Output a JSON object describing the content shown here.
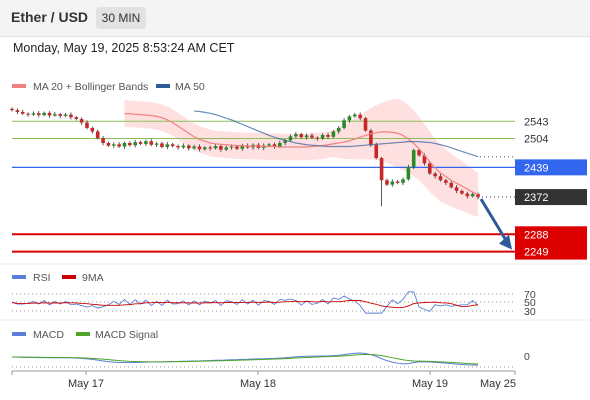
{
  "header": {
    "pair": "Ether / USD",
    "timeframe": "30 MIN"
  },
  "timestamp": "Monday, May 19, 2025 8:53:24 AM CET",
  "colors": {
    "ma20": "#f08080",
    "ma50": "#2e5c9a",
    "bands": "#ffd6d6",
    "up": "#2a8a2a",
    "down": "#c62828",
    "resistance": "#8cbf5a",
    "current": "#3366ee",
    "support": "#dd0000",
    "rsi": "#5b7fd6",
    "ma9": "#cc0000",
    "macd": "#5b7fd6",
    "signal": "#4ea52a"
  },
  "legend_main": {
    "ma20": "MA 20 + Bollinger Bands",
    "ma50": "MA 50"
  },
  "legend_rsi": {
    "rsi": "RSI",
    "ma9": "9MA"
  },
  "legend_macd": {
    "macd": "MACD",
    "signal": "MACD Signal"
  },
  "chart_data": [
    {
      "type": "candlestick",
      "x_labels": [
        "May 17",
        "May 18",
        "May 19",
        "May 25"
      ],
      "ylim": [
        2230,
        2600
      ],
      "levels": [
        {
          "value": 2543,
          "label": "2543",
          "kind": "resistance"
        },
        {
          "value": 2504,
          "label": "2504",
          "kind": "resistance"
        },
        {
          "value": 2439,
          "label": "2439",
          "kind": "current"
        },
        {
          "value": 2372,
          "label": "2372",
          "kind": "last"
        },
        {
          "value": 2288,
          "label": "2288",
          "kind": "support"
        },
        {
          "value": 2249,
          "label": "2249",
          "kind": "support"
        }
      ],
      "close": [
        2568,
        2564,
        2560,
        2558,
        2561,
        2557,
        2562,
        2556,
        2559,
        2555,
        2558,
        2552,
        2548,
        2540,
        2528,
        2520,
        2505,
        2494,
        2488,
        2491,
        2486,
        2494,
        2489,
        2496,
        2492,
        2498,
        2490,
        2493,
        2485,
        2491,
        2487,
        2484,
        2488,
        2482,
        2486,
        2480,
        2484,
        2482,
        2487,
        2479,
        2484,
        2486,
        2481,
        2488,
        2484,
        2490,
        2483,
        2488,
        2491,
        2486,
        2494,
        2500,
        2509,
        2514,
        2507,
        2511,
        2506,
        2504,
        2512,
        2508,
        2520,
        2528,
        2545,
        2554,
        2558,
        2550,
        2522,
        2490,
        2460,
        2410,
        2400,
        2407,
        2404,
        2412,
        2440,
        2478,
        2466,
        2448,
        2425,
        2419,
        2410,
        2404,
        2394,
        2386,
        2380,
        2374,
        2379,
        2372
      ],
      "ma20": [
        2560,
        2560,
        2559,
        2558,
        2557,
        2556,
        2554,
        2551,
        2546,
        2540,
        2532,
        2524,
        2516,
        2508,
        2502,
        2498,
        2494,
        2492,
        2491,
        2490,
        2489,
        2488,
        2488,
        2487,
        2487,
        2487,
        2486,
        2486,
        2486,
        2485,
        2485,
        2485,
        2485,
        2485,
        2485,
        2486,
        2487,
        2488,
        2490,
        2492,
        2494,
        2496,
        2499,
        2503,
        2507,
        2511,
        2515,
        2517,
        2519,
        2519,
        2518,
        2516,
        2511,
        2503,
        2493,
        2481,
        2467,
        2452,
        2438,
        2426,
        2418,
        2410,
        2403,
        2397,
        2390,
        2383,
        2377
      ],
      "ma50": [
        2566,
        2565,
        2563,
        2561,
        2558,
        2554,
        2550,
        2546,
        2541,
        2536,
        2531,
        2526,
        2521,
        2516,
        2511,
        2507,
        2503,
        2500,
        2497,
        2494,
        2492,
        2490,
        2489,
        2488,
        2487,
        2486,
        2486,
        2486,
        2486,
        2486,
        2487,
        2488,
        2489,
        2490,
        2491,
        2492,
        2493,
        2494,
        2495,
        2496,
        2497,
        2497,
        2497,
        2496,
        2495,
        2493,
        2490,
        2487,
        2483,
        2479,
        2475,
        2471,
        2467,
        2463
      ],
      "forecast_target": 2249
    },
    {
      "type": "line",
      "title": "RSI",
      "ticks": [
        70,
        50,
        30
      ],
      "series": [
        {
          "name": "RSI"
        },
        {
          "name": "9MA"
        }
      ]
    },
    {
      "type": "line",
      "title": "MACD",
      "ticks": [
        0
      ],
      "series": [
        {
          "name": "MACD"
        },
        {
          "name": "MACD Signal"
        }
      ]
    }
  ]
}
